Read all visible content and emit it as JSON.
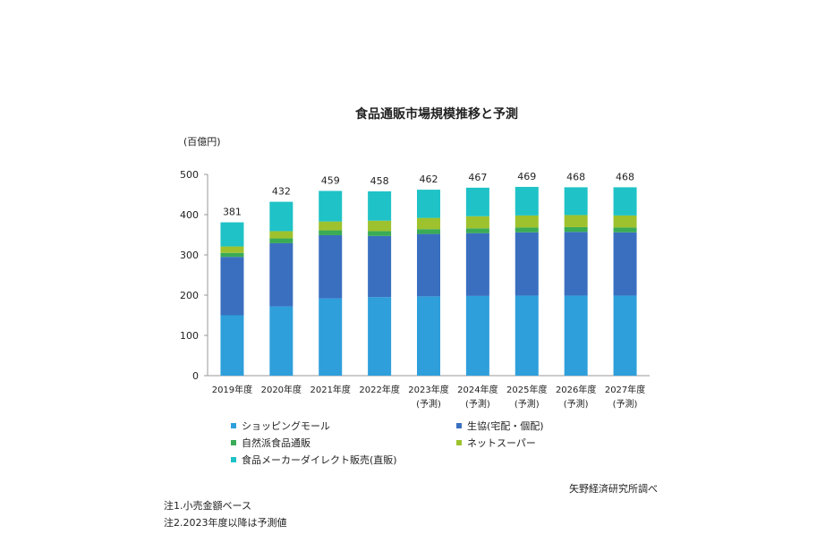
{
  "chart_data": {
    "type": "bar",
    "stacked": true,
    "title": "食品通販市場規模推移と予測",
    "ylabel": "(百億円)",
    "ylim": [
      0,
      500
    ],
    "yticks": [
      0,
      100,
      200,
      300,
      400,
      500
    ],
    "grid": false,
    "legend_position": "bottom",
    "categories": [
      [
        "2019年度",
        ""
      ],
      [
        "2020年度",
        ""
      ],
      [
        "2021年度",
        ""
      ],
      [
        "2022年度",
        ""
      ],
      [
        "2023年度",
        "(予測)"
      ],
      [
        "2024年度",
        "(予測)"
      ],
      [
        "2025年度",
        "(予測)"
      ],
      [
        "2026年度",
        "(予測)"
      ],
      [
        "2027年度",
        "(予測)"
      ]
    ],
    "totals": [
      381,
      432,
      459,
      458,
      462,
      467,
      469,
      468,
      468
    ],
    "series": [
      {
        "name": "ショッピングモール",
        "color": "#2e9fdb",
        "values": [
          150,
          172,
          192,
          195,
          197,
          198,
          199,
          199,
          199
        ]
      },
      {
        "name": "生協(宅配・個配)",
        "color": "#3a6fc0",
        "values": [
          145,
          157,
          157,
          152,
          155,
          156,
          157,
          158,
          157
        ]
      },
      {
        "name": "自然派食品通販",
        "color": "#3aab56",
        "values": [
          10,
          12,
          12,
          12,
          12,
          12,
          12,
          12,
          12
        ]
      },
      {
        "name": "ネットスーパー",
        "color": "#9dc22e",
        "values": [
          16,
          18,
          22,
          26,
          28,
          30,
          30,
          30,
          30
        ]
      },
      {
        "name": "食品メーカーダイレクト販売(直販)",
        "color": "#1fc2c7",
        "values": [
          60,
          73,
          76,
          73,
          70,
          71,
          71,
          69,
          70
        ]
      }
    ]
  },
  "source": "矢野経済研究所調べ",
  "notes": [
    "注1.小売金額ベース",
    "注2.2023年度以降は予測値"
  ]
}
